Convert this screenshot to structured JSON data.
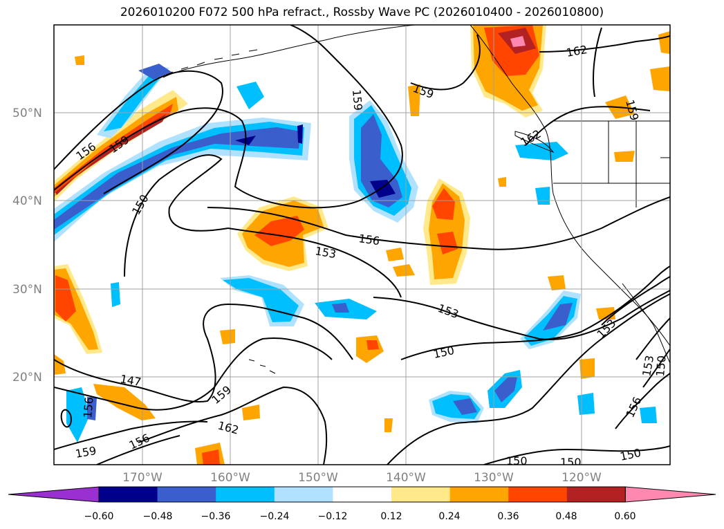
{
  "title": "2026010200 F072 500 hPa refract., Rossby Wave PC (2026010400 - 2026010800)",
  "lat_labels": [
    "50°N",
    "40°N",
    "30°N",
    "20°N"
  ],
  "lon_labels": [
    "170°W",
    "160°W",
    "150°W",
    "140°W",
    "130°W",
    "120°W"
  ],
  "contour_labels": [
    "156",
    "159",
    "150",
    "159",
    "162",
    "159",
    "162",
    "156",
    "153",
    "153",
    "150",
    "147",
    "159",
    "162",
    "156",
    "159",
    "156",
    "153",
    "153",
    "150",
    "156",
    "150",
    "150",
    "150",
    "159"
  ],
  "colorbar": {
    "tick_labels": [
      "−0.60",
      "−0.48",
      "−0.36",
      "−0.24",
      "−0.12",
      "0.12",
      "0.24",
      "0.36",
      "0.48",
      "0.60"
    ],
    "colors": [
      "#9b30d0",
      "#00008b",
      "#3a5fcd",
      "#00bfff",
      "#b0e2ff",
      "#ffffff",
      "#ffe98a",
      "#ffa500",
      "#ff4500",
      "#b22222",
      "#ff88b0"
    ]
  },
  "colors": {
    "neg_light": "#b0e2ff",
    "neg_mid": "#00bfff",
    "neg_strong": "#3a5fcd",
    "neg_max": "#00008b",
    "pos_light": "#ffe98a",
    "pos_mid": "#ffa500",
    "pos_strong": "#ff4500",
    "pos_max": "#b22222",
    "pos_extreme": "#ff88b0"
  }
}
